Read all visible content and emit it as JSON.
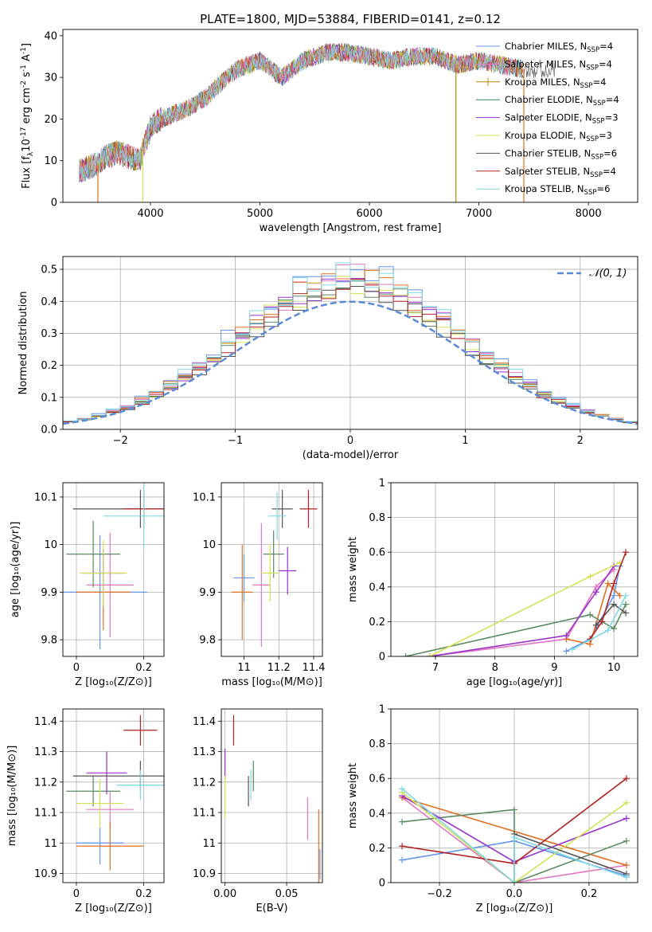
{
  "title": "PLATE=1800, MJD=53884, FIBERID=0141, z=0.12",
  "legend_entries": [
    {
      "label": "Chabrier MILES, N",
      "sub": "SSP",
      "suffix": "=4",
      "color": "#6495ed",
      "marker": "none"
    },
    {
      "label": "Salpeter MILES, N",
      "sub": "SSP",
      "suffix": "=4",
      "color": "#e377c2",
      "marker": "none"
    },
    {
      "label": "Kroupa MILES, N",
      "sub": "SSP",
      "suffix": "=4",
      "color": "#b8860b",
      "marker": "plus"
    },
    {
      "label": "Chabrier ELODIE, N",
      "sub": "SSP",
      "suffix": "=4",
      "color": "#2e8b57",
      "marker": "none"
    },
    {
      "label": "Salpeter ELODIE, N",
      "sub": "SSP",
      "suffix": "=3",
      "color": "#9932cc",
      "marker": "none"
    },
    {
      "label": "Kroupa ELODIE, N",
      "sub": "SSP",
      "suffix": "=3",
      "color": "#d4e157",
      "marker": "none"
    },
    {
      "label": "Chabrier STELIB, N",
      "sub": "SSP",
      "suffix": "=6",
      "color": "#555555",
      "marker": "none"
    },
    {
      "label": "Salpeter STELIB, N",
      "sub": "SSP",
      "suffix": "=4",
      "color": "#b22222",
      "marker": "none"
    },
    {
      "label": "Kroupa STELIB, N",
      "sub": "SSP",
      "suffix": "=6",
      "color": "#7fd8e0",
      "marker": "none"
    }
  ],
  "chart_data": [
    {
      "id": "spectrum",
      "type": "line",
      "xlabel": "wavelength [Angstrom, rest frame]",
      "ylabel_main": "Flux [f",
      "ylabel_rest": "10",
      "ylabel_exp1": "-17",
      "ylabel_unit": " erg cm",
      "ylabel_exp2": "-2",
      "ylabel_s": " s",
      "ylabel_exp3": "-1",
      "ylabel_A": " A",
      "ylabel_exp4": "-1",
      "ylabel_end": "]",
      "xlim": [
        3200,
        8450
      ],
      "ylim": [
        0,
        41.5
      ],
      "xticks": [
        4000,
        5000,
        6000,
        7000,
        8000
      ],
      "yticks": [
        0,
        10,
        20,
        30,
        40
      ],
      "envelope": {
        "x": [
          3350,
          3500,
          3600,
          3700,
          3900,
          4000,
          4100,
          4300,
          4500,
          4700,
          4800,
          5000,
          5100,
          5200,
          5400,
          5600,
          5800,
          6000,
          6200,
          6400,
          6600,
          6800,
          7000,
          7200,
          7400
        ],
        "y": [
          7.5,
          9,
          11,
          12,
          10,
          18,
          20,
          22,
          25,
          30,
          32,
          34,
          32,
          30,
          34,
          36,
          36,
          35,
          34,
          35,
          35,
          33,
          34,
          33,
          32
        ]
      },
      "spikes": [
        {
          "x": 3520
        },
        {
          "x": 3930
        },
        {
          "x": 6790
        },
        {
          "x": 7410
        }
      ]
    },
    {
      "id": "residuals",
      "type": "histogram",
      "xlabel": "(data-model)/error",
      "ylabel": "Normed distribution",
      "xlim": [
        -2.5,
        2.5
      ],
      "ylim": [
        0,
        0.54
      ],
      "xticks": [
        -2,
        -1,
        0,
        1,
        2
      ],
      "yticks": [
        0.0,
        0.1,
        0.2,
        0.3,
        0.4,
        0.5
      ],
      "xtick_labels": [
        "−2",
        "−1",
        "0",
        "1",
        "2"
      ],
      "ytick_labels": [
        "0.0",
        "0.1",
        "0.2",
        "0.3",
        "0.4",
        "0.5"
      ],
      "gaussian_label": "𝒩(0, 1)",
      "gaussian_color": "#5b8ad6",
      "bin_width": 0.125,
      "peaks": [
        0.51,
        0.48,
        0.47,
        0.44,
        0.46,
        0.45,
        0.43,
        0.44,
        0.5
      ]
    },
    {
      "id": "age_vs_Z",
      "type": "errorbar",
      "xlabel": "Z [log₁₀(Z/Z⊙)]",
      "ylabel": "age  [log₁₀(age/yr)]",
      "xlim": [
        -0.04,
        0.26
      ],
      "ylim": [
        9.765,
        10.13
      ],
      "xticks": [
        0.0,
        0.2
      ],
      "yticks": [
        9.8,
        9.9,
        10.0,
        10.1
      ],
      "points": [
        {
          "x": 0.07,
          "y": 9.9,
          "xerr": 0.14,
          "yerr": 0.12
        },
        {
          "x": 0.1,
          "y": 9.915,
          "xerr": 0.07,
          "yerr": 0.11
        },
        {
          "x": 0.08,
          "y": 9.9,
          "xerr": 0.08,
          "yerr": 0.08
        },
        {
          "x": 0.05,
          "y": 9.98,
          "xerr": 0.08,
          "yerr": 0.07
        },
        {
          "x": 0.08,
          "y": 9.94,
          "xerr": 0.06,
          "yerr": 0.05
        },
        {
          "x": 0.08,
          "y": 9.94,
          "xerr": 0.07,
          "yerr": 0.07
        },
        {
          "x": 0.19,
          "y": 10.075,
          "xerr": 0.2,
          "yerr": 0.04
        },
        {
          "x": 0.2,
          "y": 10.075,
          "xerr": 0.06,
          "yerr": 0.04
        },
        {
          "x": 0.2,
          "y": 10.06,
          "xerr": 0.12,
          "yerr": 0.07
        }
      ]
    },
    {
      "id": "age_vs_mass",
      "type": "errorbar",
      "xlabel": "mass [log₁₀(M/M⊙)]",
      "ylabel": "",
      "xlim": [
        10.87,
        11.45
      ],
      "ylim": [
        9.765,
        10.13
      ],
      "xticks": [
        11.0,
        11.2,
        11.4
      ],
      "yticks": [
        9.8,
        9.9,
        10.0,
        10.1
      ],
      "points": [
        {
          "x": 11.0,
          "y": 9.93,
          "xerr": 0.06,
          "yerr": 0.05
        },
        {
          "x": 11.1,
          "y": 9.915,
          "xerr": 0.05,
          "yerr": 0.13
        },
        {
          "x": 10.99,
          "y": 9.9,
          "xerr": 0.06,
          "yerr": 0.1
        },
        {
          "x": 11.17,
          "y": 9.98,
          "xerr": 0.06,
          "yerr": 0.05
        },
        {
          "x": 11.25,
          "y": 9.945,
          "xerr": 0.05,
          "yerr": 0.05
        },
        {
          "x": 11.15,
          "y": 9.94,
          "xerr": 0.05,
          "yerr": 0.06
        },
        {
          "x": 11.22,
          "y": 10.075,
          "xerr": 0.06,
          "yerr": 0.04
        },
        {
          "x": 11.37,
          "y": 10.075,
          "xerr": 0.05,
          "yerr": 0.04
        },
        {
          "x": 11.19,
          "y": 10.06,
          "xerr": 0.05,
          "yerr": 0.05
        }
      ]
    },
    {
      "id": "mass_weight_vs_age",
      "type": "line",
      "xlabel": "age  [log₁₀(age/yr)]",
      "ylabel": "mass weight",
      "xlim": [
        6.25,
        10.4
      ],
      "ylim": [
        0,
        1.0
      ],
      "xticks": [
        7,
        8,
        9,
        10
      ],
      "yticks": [
        0.0,
        0.2,
        0.4,
        0.6,
        0.8,
        1.0
      ],
      "series": [
        {
          "color": "#6495ed",
          "points": [
            [
              9.2,
              0.03
            ],
            [
              9.6,
              0.1
            ],
            [
              10.0,
              0.35
            ],
            [
              10.1,
              0.52
            ]
          ]
        },
        {
          "color": "#e377c2",
          "points": [
            [
              6.9,
              0.0
            ],
            [
              9.2,
              0.1
            ],
            [
              9.7,
              0.4
            ],
            [
              10.0,
              0.5
            ]
          ]
        },
        {
          "color": "#e07020",
          "points": [
            [
              9.2,
              0.1
            ],
            [
              9.6,
              0.07
            ],
            [
              9.9,
              0.42
            ],
            [
              10.1,
              0.35
            ]
          ]
        },
        {
          "color": "#5a8a60",
          "points": [
            [
              6.5,
              0.0
            ],
            [
              9.6,
              0.24
            ],
            [
              10.0,
              0.16
            ],
            [
              10.2,
              0.3
            ]
          ]
        },
        {
          "color": "#9932cc",
          "points": [
            [
              6.9,
              0.0
            ],
            [
              9.2,
              0.12
            ],
            [
              9.7,
              0.37
            ],
            [
              10.0,
              0.52
            ]
          ]
        },
        {
          "color": "#d4e157",
          "points": [
            [
              6.9,
              0.0
            ],
            [
              9.6,
              0.46
            ],
            [
              10.1,
              0.54
            ]
          ]
        },
        {
          "color": "#555555",
          "points": [
            [
              9.7,
              0.18
            ],
            [
              10.0,
              0.3
            ],
            [
              10.2,
              0.25
            ]
          ]
        },
        {
          "color": "#b22222",
          "points": [
            [
              9.6,
              0.1
            ],
            [
              9.8,
              0.2
            ],
            [
              10.0,
              0.42
            ],
            [
              10.2,
              0.6
            ]
          ]
        },
        {
          "color": "#7fd8e0",
          "points": [
            [
              9.3,
              0.04
            ],
            [
              9.9,
              0.15
            ],
            [
              10.2,
              0.35
            ]
          ]
        }
      ]
    },
    {
      "id": "mass_vs_Z",
      "type": "errorbar",
      "xlabel": "Z [log₁₀(Z/Z⊙)]",
      "ylabel": "mass [log₁₀(M/M⊙)]",
      "xlim": [
        -0.04,
        0.26
      ],
      "ylim": [
        10.87,
        11.44
      ],
      "xticks": [
        0.0,
        0.2
      ],
      "yticks": [
        10.9,
        11.0,
        11.1,
        11.2,
        11.3,
        11.4
      ],
      "points": [
        {
          "x": 0.07,
          "y": 11.0,
          "xerr": 0.07,
          "yerr": 0.07
        },
        {
          "x": 0.1,
          "y": 11.11,
          "xerr": 0.07,
          "yerr": 0.06
        },
        {
          "x": 0.1,
          "y": 10.99,
          "xerr": 0.1,
          "yerr": 0.08
        },
        {
          "x": 0.05,
          "y": 11.17,
          "xerr": 0.08,
          "yerr": 0.05
        },
        {
          "x": 0.09,
          "y": 11.23,
          "xerr": 0.06,
          "yerr": 0.07
        },
        {
          "x": 0.07,
          "y": 11.13,
          "xerr": 0.07,
          "yerr": 0.08
        },
        {
          "x": 0.19,
          "y": 11.22,
          "xerr": 0.2,
          "yerr": 0.05
        },
        {
          "x": 0.19,
          "y": 11.37,
          "xerr": 0.05,
          "yerr": 0.05
        },
        {
          "x": 0.19,
          "y": 11.19,
          "xerr": 0.07,
          "yerr": 0.05
        }
      ]
    },
    {
      "id": "ebv",
      "type": "errorbar",
      "xlabel": "E(B-V)",
      "ylabel": "",
      "xlim": [
        -0.003,
        0.079
      ],
      "ylim": [
        10.87,
        11.44
      ],
      "xticks": [
        0.0,
        0.05
      ],
      "yticks": [
        10.9,
        11.0,
        11.1,
        11.2,
        11.3,
        11.4
      ],
      "xtick_labels": [
        "0.00",
        "0.05"
      ],
      "points": [
        {
          "x": 0.077,
          "y": 10.93,
          "xerr": 0.0,
          "yerr": 0.05
        },
        {
          "x": 0.067,
          "y": 11.08,
          "xerr": 0.0,
          "yerr": 0.07
        },
        {
          "x": 0.076,
          "y": 10.99,
          "xerr": 0.0,
          "yerr": 0.12
        },
        {
          "x": 0.023,
          "y": 11.22,
          "xerr": 0.0,
          "yerr": 0.05
        },
        {
          "x": 0.0,
          "y": 11.26,
          "xerr": 0.0,
          "yerr": 0.05
        },
        {
          "x": 0.0,
          "y": 11.15,
          "xerr": 0.0,
          "yerr": 0.07
        },
        {
          "x": 0.019,
          "y": 11.17,
          "xerr": 0.0,
          "yerr": 0.05
        },
        {
          "x": 0.007,
          "y": 11.37,
          "xerr": 0.0,
          "yerr": 0.05
        },
        {
          "x": 0.021,
          "y": 11.19,
          "xerr": 0.0,
          "yerr": 0.05
        }
      ]
    },
    {
      "id": "mass_weight_vs_Z",
      "type": "line",
      "xlabel": "Z [log₁₀(Z/Z⊙)]",
      "ylabel": "mass weight",
      "xlim": [
        -0.33,
        0.33
      ],
      "ylim": [
        0,
        1.0
      ],
      "xticks": [
        -0.2,
        0.0,
        0.2
      ],
      "yticks": [
        0.0,
        0.2,
        0.4,
        0.6,
        0.8,
        1.0
      ],
      "xtick_labels": [
        "−0.2",
        "0.0",
        "0.2"
      ],
      "series": [
        {
          "color": "#6495ed",
          "points": [
            [
              -0.3,
              0.13
            ],
            [
              0.0,
              0.24
            ],
            [
              0.3,
              0.04
            ]
          ]
        },
        {
          "color": "#e377c2",
          "points": [
            [
              -0.3,
              0.49
            ],
            [
              0.0,
              0.0
            ],
            [
              0.3,
              0.1
            ]
          ]
        },
        {
          "color": "#e07020",
          "points": [
            [
              -0.3,
              0.49
            ],
            [
              0.3,
              0.1
            ]
          ]
        },
        {
          "color": "#5a8a60",
          "points": [
            [
              -0.3,
              0.35
            ],
            [
              0.0,
              0.42
            ],
            [
              0.0,
              0.0
            ],
            [
              0.3,
              0.24
            ]
          ]
        },
        {
          "color": "#9932cc",
          "points": [
            [
              -0.3,
              0.5
            ],
            [
              0.0,
              0.12
            ],
            [
              0.3,
              0.37
            ]
          ]
        },
        {
          "color": "#d4e157",
          "points": [
            [
              -0.3,
              0.52
            ],
            [
              0.0,
              0.0
            ],
            [
              0.3,
              0.46
            ]
          ]
        },
        {
          "color": "#555555",
          "points": [
            [
              0.0,
              0.28
            ],
            [
              0.3,
              0.05
            ]
          ]
        },
        {
          "color": "#b22222",
          "points": [
            [
              -0.3,
              0.21
            ],
            [
              0.0,
              0.11
            ],
            [
              0.3,
              0.6
            ]
          ]
        },
        {
          "color": "#7fd8e0",
          "points": [
            [
              -0.3,
              0.54
            ],
            [
              0.0,
              0.0
            ],
            [
              0.0,
              0.26
            ],
            [
              0.3,
              0.03
            ]
          ]
        }
      ]
    }
  ]
}
